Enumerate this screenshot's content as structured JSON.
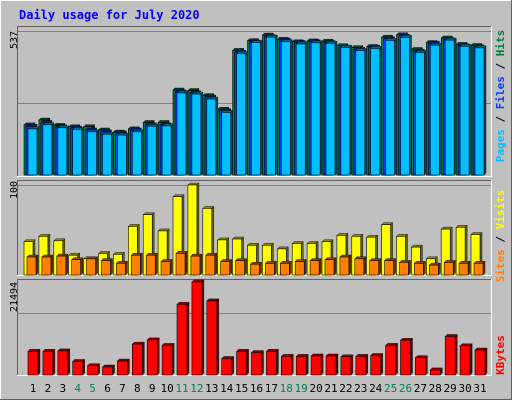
{
  "title": "Daily usage for July 2020",
  "chart_data": [
    {
      "type": "bar",
      "panel": "hits-files-pages",
      "ymax_label": "537",
      "ylim": [
        0,
        537
      ],
      "legend": [
        {
          "label": "Pages",
          "color": "#00c0ff"
        },
        {
          "label": "Files",
          "color": "#0040ff"
        },
        {
          "label": "Hits",
          "color": "#008040"
        }
      ],
      "legend_separator": " / ",
      "categories": [
        "1",
        "2",
        "3",
        "4",
        "5",
        "6",
        "7",
        "8",
        "9",
        "10",
        "11",
        "12",
        "13",
        "14",
        "15",
        "16",
        "17",
        "18",
        "19",
        "20",
        "21",
        "22",
        "23",
        "24",
        "25",
        "26",
        "27",
        "28",
        "29",
        "30",
        "31"
      ],
      "series": [
        {
          "name": "Hits",
          "color": "#008040",
          "values": [
            187,
            205,
            185,
            180,
            180,
            168,
            160,
            172,
            196,
            196,
            317,
            315,
            296,
            245,
            465,
            501,
            522,
            506,
            497,
            500,
            499,
            482,
            475,
            479,
            514,
            523,
            468,
            494,
            511,
            487,
            483
          ]
        },
        {
          "name": "Files",
          "color": "#0040ff",
          "values": [
            182,
            196,
            180,
            175,
            168,
            161,
            157,
            168,
            187,
            187,
            310,
            306,
            291,
            240,
            458,
            496,
            516,
            503,
            494,
            497,
            494,
            477,
            469,
            477,
            508,
            518,
            462,
            491,
            505,
            482,
            478
          ]
        },
        {
          "name": "Pages",
          "color": "#00c0ff",
          "values": [
            172,
            188,
            176,
            170,
            161,
            152,
            149,
            161,
            182,
            183,
            306,
            302,
            283,
            233,
            453,
            494,
            514,
            497,
            489,
            493,
            491,
            476,
            464,
            472,
            502,
            513,
            457,
            484,
            503,
            480,
            474
          ]
        }
      ]
    },
    {
      "type": "bar",
      "panel": "visits-sites",
      "ymax_label": "100",
      "ylim": [
        0,
        100
      ],
      "legend": [
        {
          "label": "Sites",
          "color": "#ff8000"
        },
        {
          "label": "Visits",
          "color": "#ffff00"
        }
      ],
      "legend_separator": " / ",
      "categories": [
        "1",
        "2",
        "3",
        "4",
        "5",
        "6",
        "7",
        "8",
        "9",
        "10",
        "11",
        "12",
        "13",
        "14",
        "15",
        "16",
        "17",
        "18",
        "19",
        "20",
        "21",
        "22",
        "23",
        "24",
        "25",
        "26",
        "27",
        "28",
        "29",
        "30",
        "31"
      ],
      "series": [
        {
          "name": "Visits",
          "color": "#ffff00",
          "values": [
            37,
            43,
            38,
            22,
            18,
            24,
            23,
            54,
            67,
            49,
            87,
            100,
            74,
            39,
            40,
            33,
            33,
            29,
            35,
            35,
            37,
            44,
            43,
            42,
            56,
            43,
            31,
            18,
            51,
            53,
            45
          ]
        },
        {
          "name": "Sites",
          "color": "#ff8000",
          "values": [
            20,
            20,
            21,
            17,
            18,
            16,
            13,
            22,
            22,
            15,
            24,
            21,
            22,
            15,
            16,
            12,
            13,
            13,
            15,
            16,
            17,
            20,
            18,
            16,
            16,
            14,
            13,
            11,
            14,
            13,
            13
          ]
        }
      ]
    },
    {
      "type": "bar",
      "panel": "kbytes",
      "ymax_label": "21494",
      "ylim": [
        0,
        21494
      ],
      "legend": [
        {
          "label": "KBytes",
          "color": "#ff0000"
        }
      ],
      "legend_separator": "",
      "categories": [
        "1",
        "2",
        "3",
        "4",
        "5",
        "6",
        "7",
        "8",
        "9",
        "10",
        "11",
        "12",
        "13",
        "14",
        "15",
        "16",
        "17",
        "18",
        "19",
        "20",
        "21",
        "22",
        "23",
        "24",
        "25",
        "26",
        "27",
        "28",
        "29",
        "30",
        "31"
      ],
      "series": [
        {
          "name": "KBytes",
          "color": "#ff0000",
          "values": [
            5600,
            5600,
            5700,
            3200,
            2200,
            1900,
            3300,
            7300,
            8300,
            7000,
            16700,
            22000,
            17500,
            3900,
            5600,
            5300,
            5600,
            4400,
            4400,
            4500,
            4500,
            4300,
            4400,
            4600,
            7000,
            8200,
            4100,
            1200,
            9100,
            6900,
            5900
          ]
        }
      ]
    }
  ],
  "x_labels": [
    {
      "text": "1",
      "weekend": false
    },
    {
      "text": "2",
      "weekend": false
    },
    {
      "text": "3",
      "weekend": false
    },
    {
      "text": "4",
      "weekend": true
    },
    {
      "text": "5",
      "weekend": true
    },
    {
      "text": "6",
      "weekend": false
    },
    {
      "text": "7",
      "weekend": false
    },
    {
      "text": "8",
      "weekend": false
    },
    {
      "text": "9",
      "weekend": false
    },
    {
      "text": "10",
      "weekend": false
    },
    {
      "text": "11",
      "weekend": true
    },
    {
      "text": "12",
      "weekend": true
    },
    {
      "text": "13",
      "weekend": false
    },
    {
      "text": "14",
      "weekend": false
    },
    {
      "text": "15",
      "weekend": false
    },
    {
      "text": "16",
      "weekend": false
    },
    {
      "text": "17",
      "weekend": false
    },
    {
      "text": "18",
      "weekend": true
    },
    {
      "text": "19",
      "weekend": true
    },
    {
      "text": "20",
      "weekend": false
    },
    {
      "text": "21",
      "weekend": false
    },
    {
      "text": "22",
      "weekend": false
    },
    {
      "text": "23",
      "weekend": false
    },
    {
      "text": "24",
      "weekend": false
    },
    {
      "text": "25",
      "weekend": true
    },
    {
      "text": "26",
      "weekend": true
    },
    {
      "text": "27",
      "weekend": false
    },
    {
      "text": "28",
      "weekend": false
    },
    {
      "text": "29",
      "weekend": false
    },
    {
      "text": "30",
      "weekend": false
    },
    {
      "text": "31",
      "weekend": false
    }
  ],
  "colors": {
    "background": "#c0c0c0",
    "title": "#0000ff",
    "weekday_label": "#000000",
    "weekend_label": "#00805c",
    "gridline": "#808080"
  }
}
